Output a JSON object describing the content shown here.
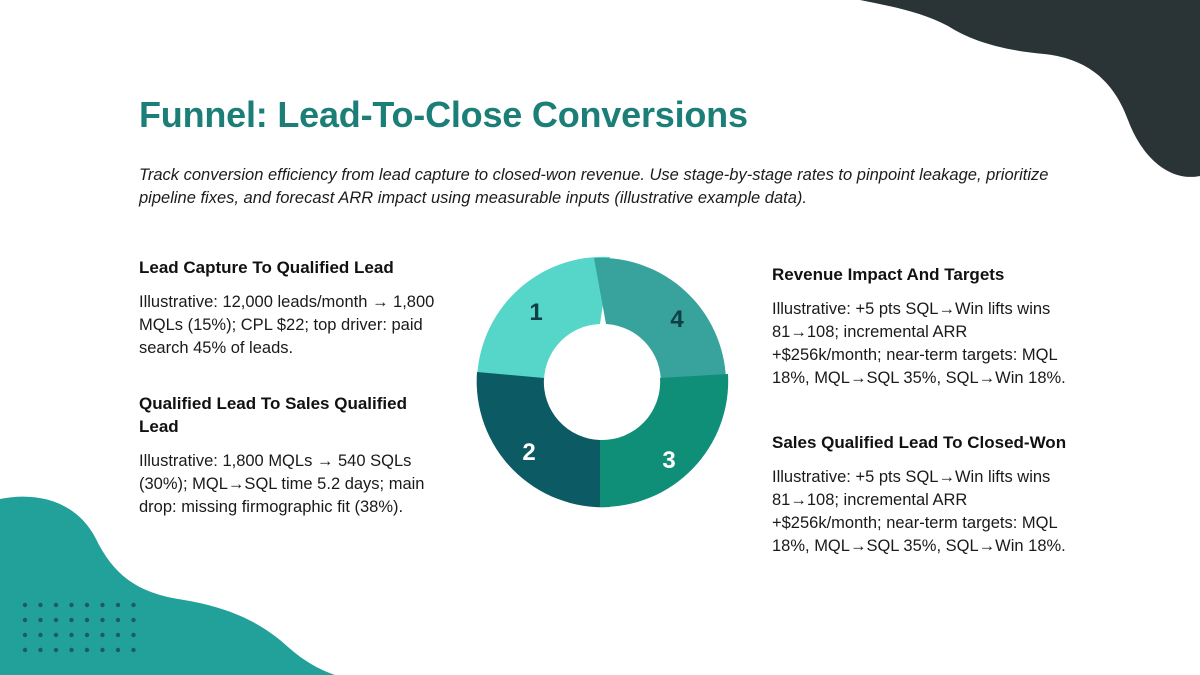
{
  "slide": {
    "title": "Funnel: Lead-To-Close Conversions",
    "subtitle": "Track conversion efficiency from lead capture to closed-won revenue. Use stage-by-stage rates to pinpoint leakage, prioritize pipeline fixes, and forecast ARR impact using measurable inputs (illustrative example data)."
  },
  "blocks": [
    {
      "heading": "Lead Capture To Qualified Lead",
      "text": "Illustrative: 12,000 leads/month → 1,800 MQLs (15%); CPL $22; top driver: paid search 45% of leads."
    },
    {
      "heading": "Qualified Lead To Sales Qualified Lead",
      "text": "Illustrative: 1,800 MQLs → 540 SQLs (30%); MQL→SQL time 5.2 days; main drop: missing firmographic fit (38%)."
    },
    {
      "heading": "Revenue Impact And Targets",
      "text": "Illustrative: +5 pts SQL→Win lifts wins 81→108; incremental ARR +$256k/month; near-term targets: MQL 18%, MQL→SQL 35%, SQL→Win 18%."
    },
    {
      "heading": "Sales Qualified Lead To Closed-Won",
      "text": "Illustrative: +5 pts SQL→Win lifts wins 81→108; incremental ARR +$256k/month; near-term targets: MQL 18%, MQL→SQL 35%, SQL→Win 18%."
    }
  ],
  "cycle": {
    "segments": [
      {
        "label": "1",
        "color": "#56d6c9"
      },
      {
        "label": "4",
        "color": "#37a39c"
      },
      {
        "label": "3",
        "color": "#0f8e78"
      },
      {
        "label": "2",
        "color": "#0c5a63"
      }
    ]
  },
  "decor": {
    "dark": "#2a3437",
    "teal": "#22a09a",
    "dots": "#1f5a60"
  }
}
